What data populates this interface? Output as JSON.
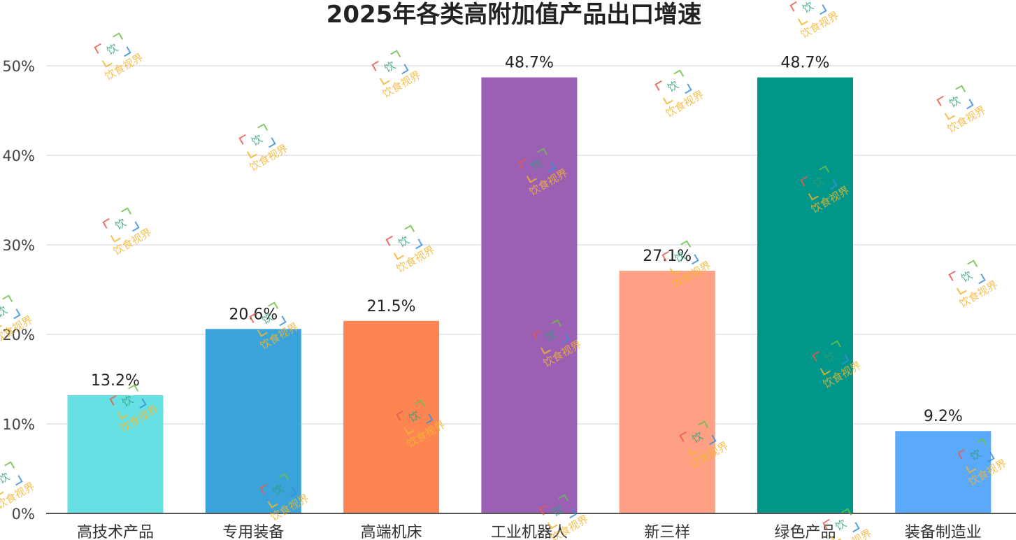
{
  "chart_data": {
    "type": "bar",
    "title": "2025年各类高附加值产品出口增速",
    "categories": [
      "高技术产品",
      "专用装备",
      "高端机床",
      "工业机器人",
      "新三样",
      "绿色产品",
      "装备制造业"
    ],
    "values": [
      13.2,
      20.6,
      21.5,
      48.7,
      27.1,
      48.7,
      9.2
    ],
    "data_labels": [
      "13.2%",
      "20.6%",
      "21.5%",
      "48.7%",
      "27.1%",
      "48.7%",
      "9.2%"
    ],
    "colors": [
      "#66e0e3",
      "#3aa3d9",
      "#fc8552",
      "#9b5fb4",
      "#fea083",
      "#00978a",
      "#5aa9fb"
    ],
    "ylim": [
      0,
      50
    ],
    "yticks": [
      0,
      10,
      20,
      30,
      40,
      50
    ],
    "ytick_labels": [
      "0%",
      "10%",
      "20%",
      "30%",
      "40%",
      "50%"
    ],
    "xlabel": "",
    "ylabel": "",
    "grid": true,
    "legend": "none"
  },
  "watermark": {
    "text": "饮食视界",
    "glyph": "饮"
  }
}
